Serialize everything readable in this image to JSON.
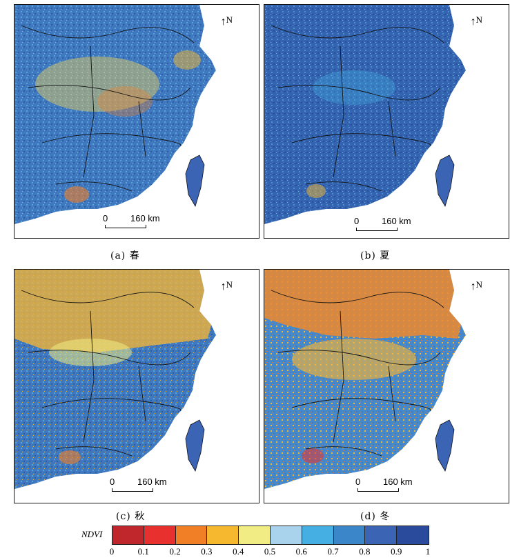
{
  "panels": [
    {
      "caption": "(a) 春",
      "north": "N",
      "scale_zero": "0",
      "scale_dist": "160 km",
      "season": "spring"
    },
    {
      "caption": "(b) 夏",
      "north": "N",
      "scale_zero": "0",
      "scale_dist": "160 km",
      "season": "summer"
    },
    {
      "caption": "(c) 秋",
      "north": "N",
      "scale_zero": "0",
      "scale_dist": "160 km",
      "season": "autumn"
    },
    {
      "caption": "(d) 冬",
      "north": "N",
      "scale_zero": "0",
      "scale_dist": "160 km",
      "season": "winter"
    }
  ],
  "legend": {
    "title": "NDVI",
    "ticks": [
      "0",
      "0.1",
      "0.2",
      "0.3",
      "0.4",
      "0.5",
      "0.6",
      "0.7",
      "0.8",
      "0.9",
      "1"
    ],
    "colors": [
      "#c0272d",
      "#e8312f",
      "#f07f26",
      "#f5b82e",
      "#f1ec84",
      "#a9d3ec",
      "#45aee3",
      "#3a86c8",
      "#3b64b4",
      "#2a4a9c"
    ]
  }
}
